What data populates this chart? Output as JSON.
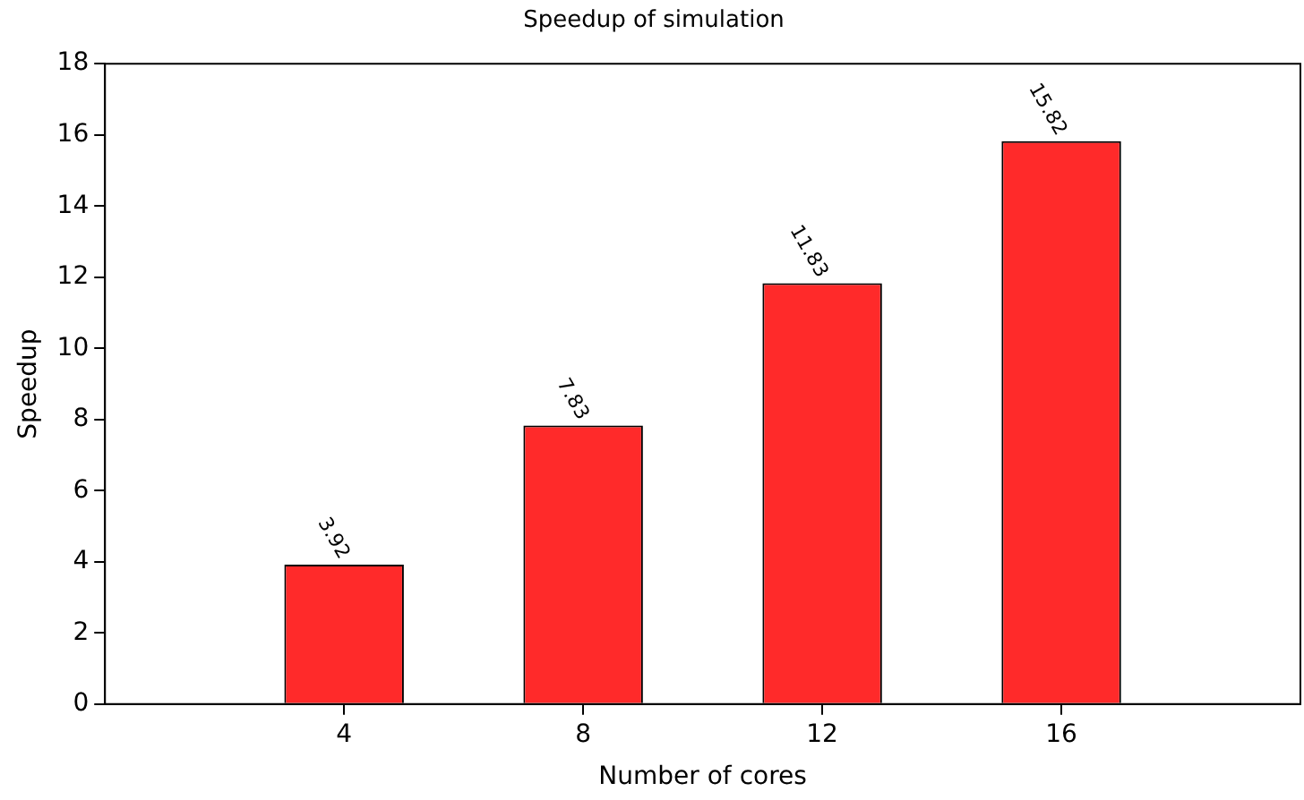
{
  "chart_data": {
    "type": "bar",
    "title": "Speedup of simulation",
    "xlabel": "Number of cores",
    "ylabel": "Speedup",
    "x": [
      4,
      8,
      12,
      16
    ],
    "values": [
      3.92,
      7.83,
      11.83,
      15.82
    ],
    "color": "#ff2a2a",
    "xlim": [
      0,
      20
    ],
    "xticks": [
      4,
      8,
      12,
      16
    ],
    "ylim": [
      0,
      18
    ],
    "yticks": [
      0,
      2,
      4,
      6,
      8,
      10,
      12,
      14,
      16,
      18
    ],
    "data_labels": true,
    "grid": false,
    "legend": false
  }
}
